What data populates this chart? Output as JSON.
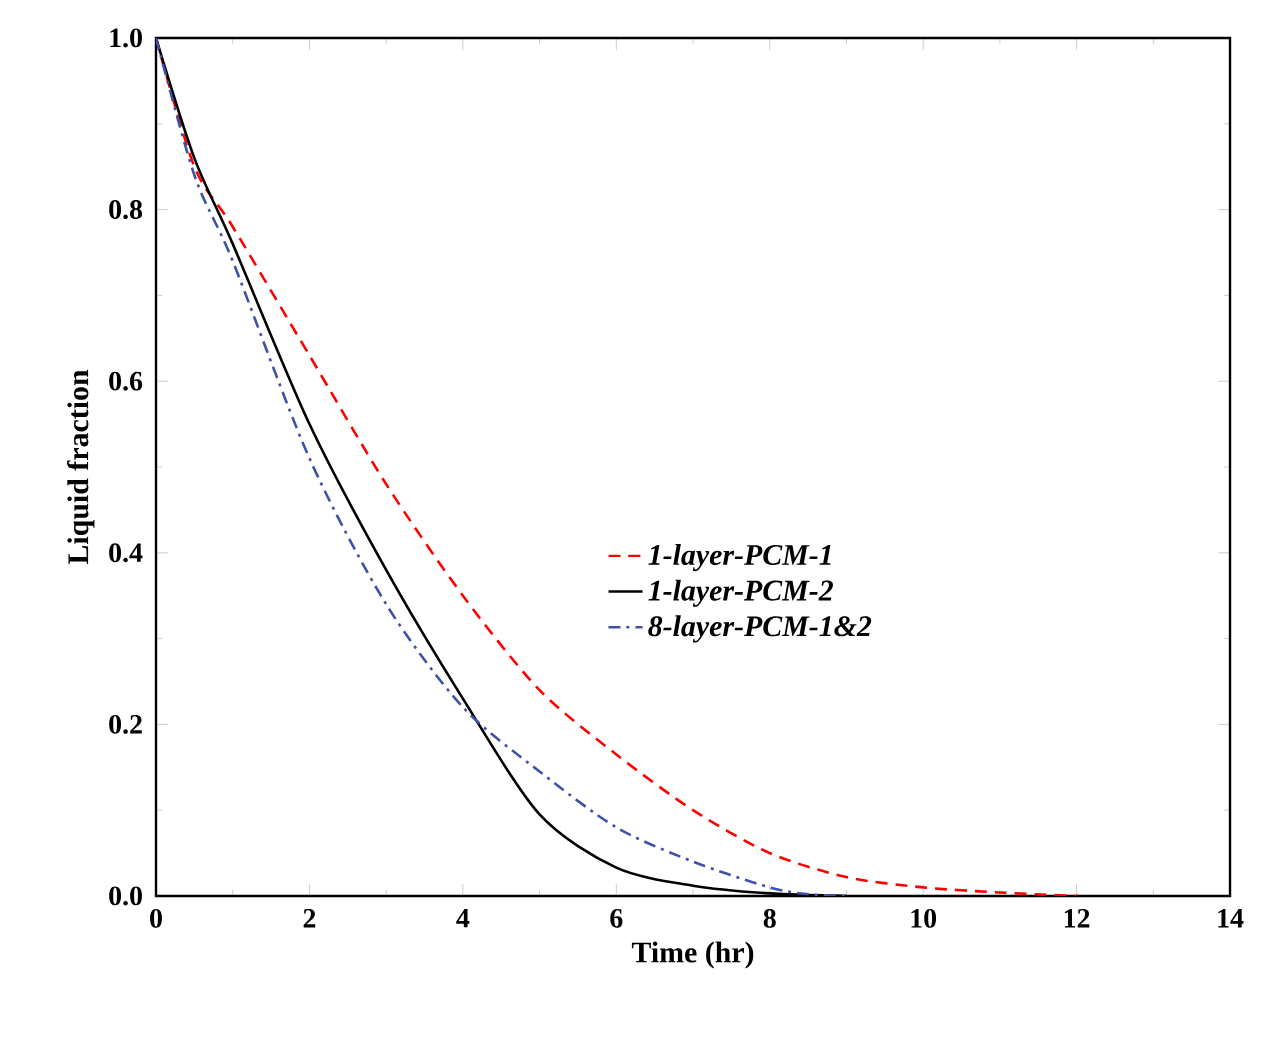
{
  "chart_data": {
    "type": "line",
    "xlabel": "Time (hr)",
    "ylabel": "Liquid fraction",
    "xlim": [
      0,
      14
    ],
    "ylim": [
      0,
      1.0
    ],
    "xticks": [
      0,
      2,
      4,
      6,
      8,
      10,
      12,
      14
    ],
    "yticks": [
      {
        "value": 0,
        "label": "0.0"
      },
      0.2,
      0.4,
      0.6,
      0.8,
      {
        "value": 1,
        "label": "1.0"
      }
    ],
    "grid": false,
    "legend": "right",
    "marker": "none",
    "series": [
      {
        "name": "1-layer-PCM-1",
        "color": "#ff0000",
        "line_style": "dashed",
        "x": [
          0,
          0.5,
          1,
          2,
          3,
          4,
          5,
          6,
          7,
          8,
          9,
          10,
          11,
          12
        ],
        "values": [
          1.0,
          0.85,
          0.78,
          0.63,
          0.48,
          0.35,
          0.24,
          0.165,
          0.1,
          0.05,
          0.022,
          0.01,
          0.004,
          0.0
        ]
      },
      {
        "name": "1-layer-PCM-2",
        "color": "#000000",
        "line_style": "solid",
        "x": [
          0,
          0.5,
          1,
          2,
          3,
          4,
          5,
          6,
          7,
          8,
          9
        ],
        "values": [
          1.0,
          0.86,
          0.76,
          0.55,
          0.38,
          0.23,
          0.095,
          0.033,
          0.012,
          0.003,
          0.0
        ]
      },
      {
        "name": "8-layer-PCM-1&2",
        "color": "#3f51a8",
        "line_style": "dashdot",
        "x": [
          0,
          0.5,
          1,
          2,
          3,
          4,
          5,
          6,
          7,
          8,
          8.5,
          9
        ],
        "values": [
          1.0,
          0.84,
          0.74,
          0.51,
          0.34,
          0.22,
          0.145,
          0.08,
          0.04,
          0.01,
          0.002,
          0.0
        ]
      }
    ]
  }
}
